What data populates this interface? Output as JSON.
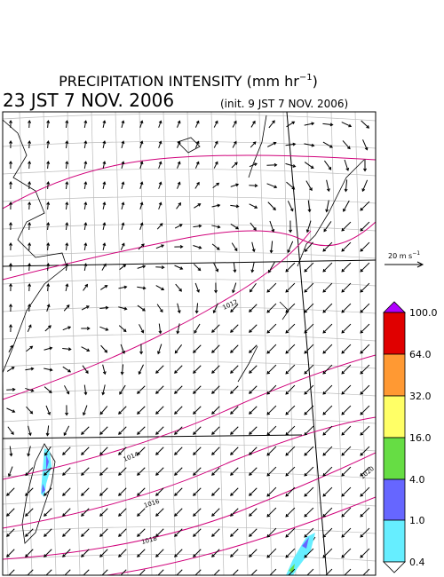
{
  "title": {
    "main": "PRECIPITATION INTENSITY (mm hr",
    "exponent": "−1",
    "close": ")"
  },
  "valid_time": "23 JST 7 NOV. 2006",
  "init_time": "(init. 9 JST 7 NOV. 2006)",
  "wind_reference": {
    "label": "20 m s",
    "exponent": "−1"
  },
  "isobar_labels": [
    "1012",
    "1014",
    "1016",
    "1018",
    "1020"
  ],
  "colorbar": {
    "labels": [
      "100.0",
      "64.0",
      "32.0",
      "16.0",
      "4.0",
      "1.0",
      "0.4"
    ]
  }
}
